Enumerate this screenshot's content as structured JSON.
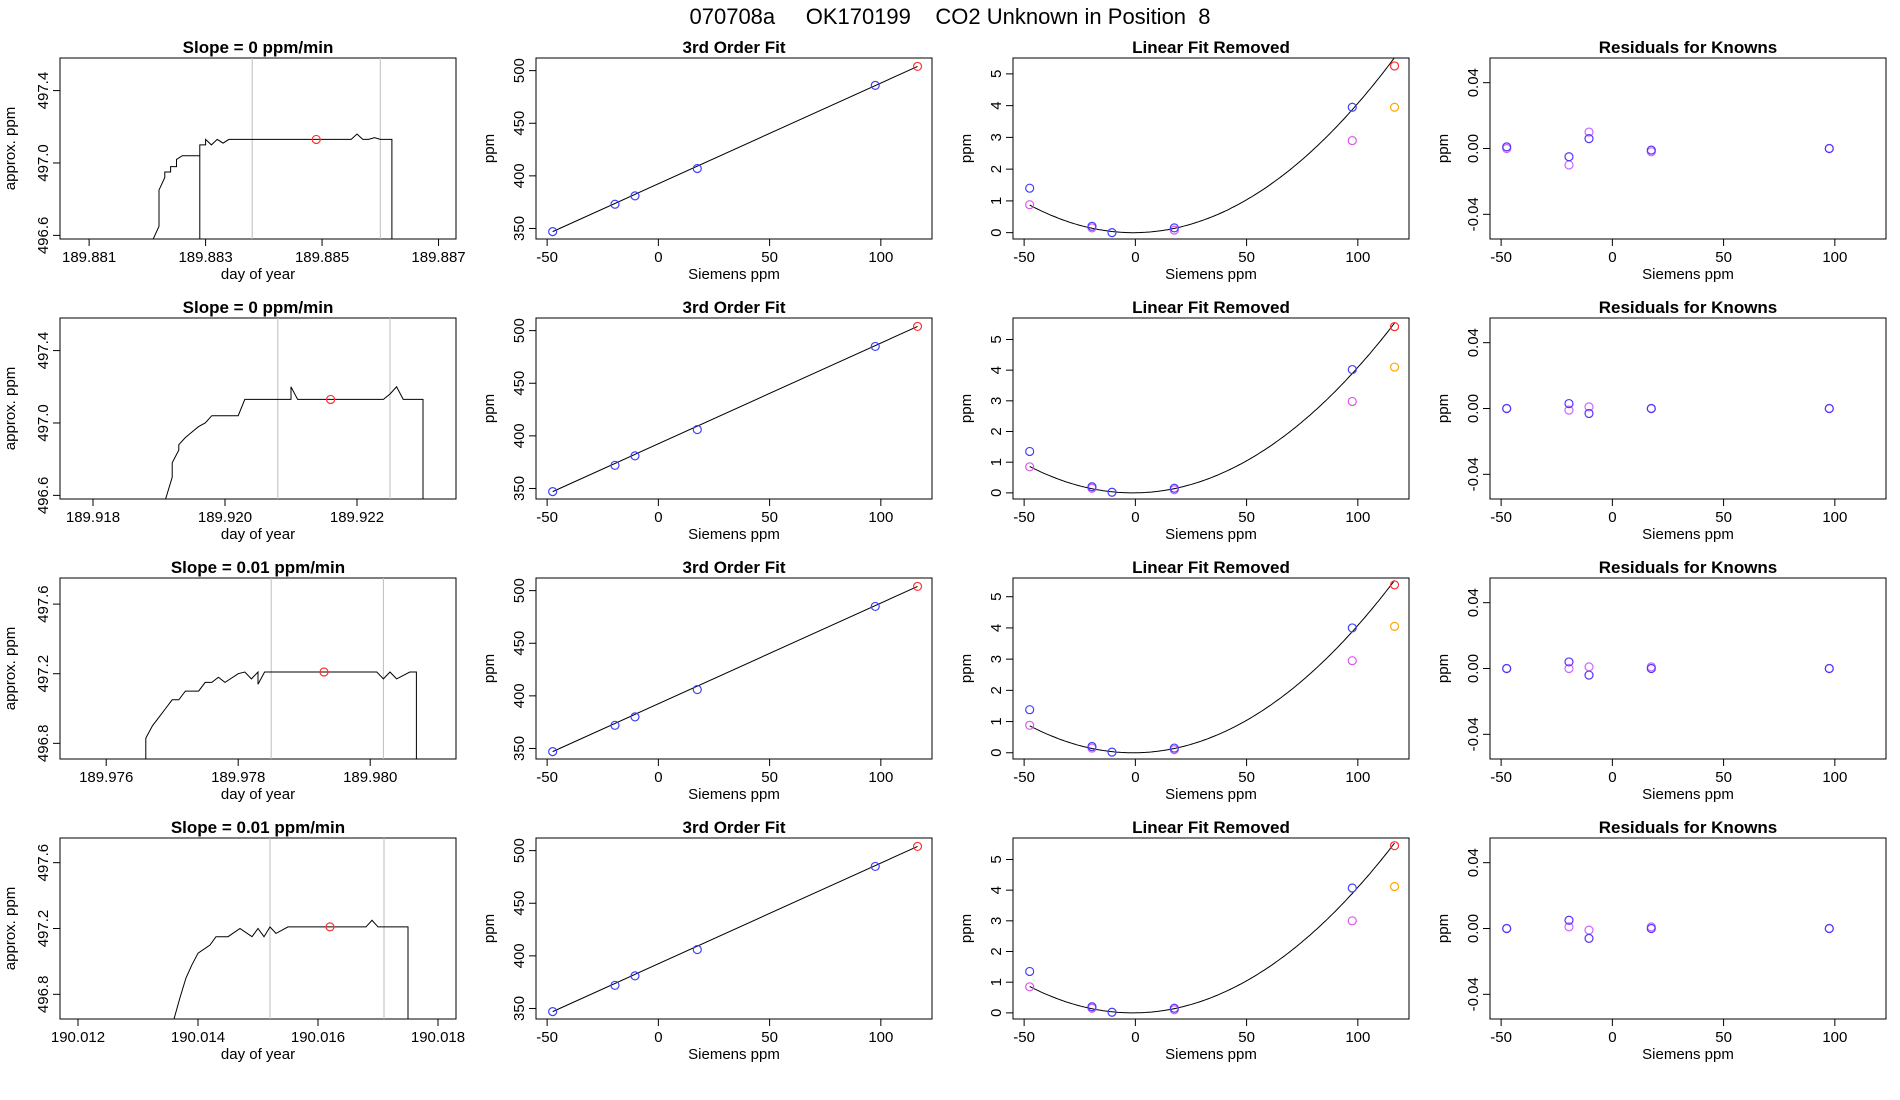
{
  "page": {
    "title": "070708a     OK170199    CO2 Unknown in Position  8"
  },
  "style": {
    "line_color": "#000000",
    "vline_color": "#bebebe",
    "known_color": "#4040ff",
    "unknown_color": "#ff3030",
    "linear_color": "#dd55ee",
    "linear_unknown_color": "#ffa500",
    "residual_a_color": "#cc66ff",
    "residual_b_color": "#5533ff"
  },
  "chart_data": [
    {
      "type": "line",
      "panel": "time-series",
      "row": 0,
      "title": "Slope =  0  ppm/min",
      "xlabel": "day of year",
      "ylabel": "approx. ppm",
      "xlim": [
        189.8805,
        189.8873
      ],
      "ylim": [
        496.58,
        497.58
      ],
      "xticks": [
        189.881,
        189.883,
        189.885,
        189.887
      ],
      "xtick_labels": [
        "189.881",
        "189.883",
        "189.885",
        "189.887"
      ],
      "yticks": [
        496.6,
        497.0,
        497.4
      ],
      "ytick_labels": [
        "496.6",
        "497.0",
        "497.4"
      ],
      "vlines": [
        189.8838,
        189.886
      ],
      "x": [
        189.8821,
        189.8822,
        189.8822,
        189.8822,
        189.8823,
        189.8823,
        189.8824,
        189.8824,
        189.8825,
        189.8825,
        189.8826,
        189.8827,
        189.8827,
        189.8828,
        189.8829,
        189.8829,
        189.8829,
        189.8829,
        189.8829,
        189.883,
        189.883,
        189.8831,
        189.8832,
        189.8833,
        189.8834,
        189.8835,
        189.8845,
        189.8855,
        189.8856,
        189.8857,
        189.8858,
        189.8859,
        189.886,
        189.8862,
        189.8862,
        189.8863
      ],
      "values": [
        496.58,
        496.65,
        496.75,
        496.85,
        496.92,
        496.95,
        496.95,
        496.98,
        496.98,
        497.02,
        497.04,
        497.04,
        497.04,
        497.04,
        497.04,
        497.04,
        496.58,
        496.58,
        497.1,
        497.1,
        497.13,
        497.1,
        497.13,
        497.11,
        497.13,
        497.13,
        497.13,
        497.13,
        497.16,
        497.13,
        497.13,
        497.14,
        497.13,
        497.13,
        496.58,
        496.58
      ],
      "marker": {
        "x": 189.8849,
        "y": 497.13
      }
    },
    {
      "type": "line",
      "panel": "time-series",
      "row": 1,
      "title": "Slope =  0  ppm/min",
      "xlabel": "day of year",
      "ylabel": "approx. ppm",
      "xlim": [
        189.9175,
        189.9235
      ],
      "ylim": [
        496.58,
        497.58
      ],
      "xticks": [
        189.918,
        189.92,
        189.922
      ],
      "xtick_labels": [
        "189.918",
        "189.920",
        "189.922"
      ],
      "yticks": [
        496.6,
        497.0,
        497.4
      ],
      "ytick_labels": [
        "496.6",
        "497.0",
        "497.4"
      ],
      "vlines": [
        189.9208,
        189.9225
      ],
      "x": [
        189.9191,
        189.9192,
        189.9192,
        189.9193,
        189.9193,
        189.9194,
        189.9195,
        189.9196,
        189.9197,
        189.9198,
        189.9199,
        189.9201,
        189.9202,
        189.9203,
        189.9208,
        189.921,
        189.921,
        189.9211,
        189.9212,
        189.9224,
        189.9225,
        189.9226,
        189.9227,
        189.9228,
        189.923,
        189.923,
        189.9231
      ],
      "values": [
        496.58,
        496.7,
        496.78,
        496.85,
        496.88,
        496.92,
        496.95,
        496.98,
        497.0,
        497.04,
        497.04,
        497.04,
        497.04,
        497.13,
        497.13,
        497.13,
        497.2,
        497.13,
        497.13,
        497.13,
        497.16,
        497.2,
        497.13,
        497.13,
        497.13,
        496.58,
        496.58
      ],
      "marker": {
        "x": 189.9216,
        "y": 497.13
      }
    },
    {
      "type": "line",
      "panel": "time-series",
      "row": 2,
      "title": "Slope =  0.01  ppm/min",
      "xlabel": "day of year",
      "ylabel": "approx. ppm",
      "xlim": [
        189.9753,
        189.9813
      ],
      "ylim": [
        496.71,
        497.75
      ],
      "xticks": [
        189.976,
        189.978,
        189.98
      ],
      "xtick_labels": [
        "189.976",
        "189.978",
        "189.980"
      ],
      "yticks": [
        496.8,
        497.2,
        497.6
      ],
      "ytick_labels": [
        "496.8",
        "497.2",
        "497.6"
      ],
      "vlines": [
        189.9785,
        189.9802
      ],
      "x": [
        189.9766,
        189.9766,
        189.9767,
        189.9768,
        189.9769,
        189.977,
        189.9771,
        189.9772,
        189.9774,
        189.9775,
        189.9776,
        189.9777,
        189.9778,
        189.978,
        189.9781,
        189.9782,
        189.9783,
        189.9783,
        189.9784,
        189.9785,
        189.9786,
        189.9787,
        189.9801,
        189.9802,
        189.9803,
        189.9804,
        189.9806,
        189.9807,
        189.9807,
        189.9807
      ],
      "values": [
        496.71,
        496.83,
        496.9,
        496.95,
        497.0,
        497.05,
        497.05,
        497.1,
        497.1,
        497.15,
        497.15,
        497.18,
        497.15,
        497.2,
        497.21,
        497.17,
        497.21,
        497.14,
        497.21,
        497.21,
        497.21,
        497.21,
        497.21,
        497.17,
        497.21,
        497.17,
        497.21,
        497.21,
        496.71,
        496.71
      ],
      "marker": {
        "x": 189.9793,
        "y": 497.21
      }
    },
    {
      "type": "line",
      "panel": "time-series",
      "row": 3,
      "title": "Slope =  0.01  ppm/min",
      "xlabel": "day of year",
      "ylabel": "approx. ppm",
      "xlim": [
        190.0117,
        190.0183
      ],
      "ylim": [
        496.65,
        497.75
      ],
      "xticks": [
        190.012,
        190.014,
        190.016,
        190.018
      ],
      "xtick_labels": [
        "190.012",
        "190.014",
        "190.016",
        "190.018"
      ],
      "yticks": [
        496.8,
        497.2,
        497.6
      ],
      "ytick_labels": [
        "496.8",
        "497.2",
        "497.6"
      ],
      "vlines": [
        190.0152,
        190.0171
      ],
      "x": [
        190.0136,
        190.0137,
        190.0138,
        190.0139,
        190.014,
        190.0142,
        190.0143,
        190.0144,
        190.0145,
        190.0147,
        190.0149,
        190.015,
        190.0151,
        190.0152,
        190.0153,
        190.0155,
        190.0168,
        190.0169,
        190.017,
        190.0175,
        190.0175,
        190.0176
      ],
      "values": [
        496.65,
        496.78,
        496.9,
        496.98,
        497.05,
        497.1,
        497.15,
        497.15,
        497.15,
        497.2,
        497.15,
        497.2,
        497.15,
        497.21,
        497.17,
        497.21,
        497.21,
        497.25,
        497.21,
        497.21,
        496.65,
        496.65
      ],
      "marker": {
        "x": 190.0162,
        "y": 497.21
      }
    },
    {
      "type": "scatter",
      "panel": "fit",
      "row": 0,
      "title": "3rd Order Fit",
      "xlabel": "Siemens ppm",
      "ylabel": "ppm",
      "xlim": [
        -55,
        123
      ],
      "ylim": [
        340,
        512
      ],
      "xticks": [
        -50,
        0,
        50,
        100
      ],
      "yticks": [
        350,
        400,
        450,
        500
      ],
      "knowns": {
        "x": [
          -47.5,
          -19.5,
          -10.5,
          17.5,
          97.5
        ],
        "y": [
          347,
          373,
          381,
          407,
          486
        ]
      },
      "unknown": {
        "x": 116.5,
        "y": 504
      },
      "curve": {
        "x": [
          -47.5,
          116.5
        ],
        "y": [
          347,
          504
        ]
      }
    },
    {
      "type": "line",
      "panel": "linear-fit-removed",
      "row": 0,
      "title": "Linear Fit Removed",
      "xlabel": "Siemens ppm",
      "ylabel": "ppm",
      "xlim": [
        -55,
        123
      ],
      "ylim": [
        -0.2,
        5.5
      ],
      "xticks": [
        -50,
        0,
        50,
        100
      ],
      "yticks": [
        0,
        1,
        2,
        3,
        4,
        5
      ],
      "curve": {
        "quadratic": [
          0.0,
          0.0007,
          0.0004
        ]
      },
      "knowns": {
        "x": [
          -47.5,
          -19.5,
          -10.5,
          17.5,
          97.5
        ],
        "y": [
          1.4,
          0.2,
          0.0,
          0.15,
          3.95
        ]
      },
      "unknown": {
        "x": 116.5,
        "y": 5.25
      },
      "linear": {
        "x": [
          -47.5,
          -19.5,
          17.5,
          97.5
        ],
        "y": [
          0.88,
          0.15,
          0.08,
          2.9
        ]
      },
      "linear_unknown": {
        "x": 116.5,
        "y": 3.95
      }
    },
    {
      "type": "scatter",
      "panel": "residuals",
      "row": 0,
      "title": "Residuals for Knowns",
      "xlabel": "Siemens ppm",
      "ylabel": "ppm",
      "xlim": [
        -55,
        123
      ],
      "ylim": [
        -0.055,
        0.055
      ],
      "xticks": [
        -50,
        0,
        50,
        100
      ],
      "yticks": [
        -0.04,
        0.0,
        0.04
      ],
      "ytick_labels": [
        "-0.04",
        "0.00",
        "0.04"
      ],
      "series_a": {
        "x": [
          -47.5,
          -19.5,
          -10.5,
          17.5,
          97.5
        ],
        "y": [
          0.0,
          -0.01,
          0.01,
          -0.002,
          0.0
        ]
      },
      "series_b": {
        "x": [
          -47.5,
          -19.5,
          -10.5,
          17.5,
          97.5
        ],
        "y": [
          0.001,
          -0.005,
          0.006,
          -0.001,
          0.0
        ]
      }
    },
    {
      "type": "scatter",
      "panel": "fit",
      "row": 1,
      "title": "3rd Order Fit",
      "xlabel": "Siemens ppm",
      "ylabel": "ppm",
      "xlim": [
        -55,
        123
      ],
      "ylim": [
        340,
        512
      ],
      "xticks": [
        -50,
        0,
        50,
        100
      ],
      "yticks": [
        350,
        400,
        450,
        500
      ],
      "knowns": {
        "x": [
          -47.5,
          -19.5,
          -10.5,
          17.5,
          97.5
        ],
        "y": [
          347,
          372,
          381,
          406,
          485
        ]
      },
      "unknown": {
        "x": 116.5,
        "y": 504
      },
      "curve": {
        "x": [
          -47.5,
          116.5
        ],
        "y": [
          347,
          504
        ]
      }
    },
    {
      "type": "line",
      "panel": "linear-fit-removed",
      "row": 1,
      "title": "Linear Fit Removed",
      "xlabel": "Siemens ppm",
      "ylabel": "ppm",
      "xlim": [
        -55,
        123
      ],
      "ylim": [
        -0.2,
        5.7
      ],
      "xticks": [
        -50,
        0,
        50,
        100
      ],
      "yticks": [
        0,
        1,
        2,
        3,
        4,
        5
      ],
      "curve": {
        "quadratic": [
          0.0,
          0.0009,
          0.0004
        ]
      },
      "knowns": {
        "x": [
          -47.5,
          -19.5,
          -10.5,
          17.5,
          97.5
        ],
        "y": [
          1.35,
          0.2,
          0.02,
          0.15,
          4.02
        ]
      },
      "unknown": {
        "x": 116.5,
        "y": 5.42
      },
      "linear": {
        "x": [
          -47.5,
          -19.5,
          17.5,
          97.5
        ],
        "y": [
          0.85,
          0.15,
          0.1,
          2.98
        ]
      },
      "linear_unknown": {
        "x": 116.5,
        "y": 4.1
      }
    },
    {
      "type": "scatter",
      "panel": "residuals",
      "row": 1,
      "title": "Residuals for Knowns",
      "xlabel": "Siemens ppm",
      "ylabel": "ppm",
      "xlim": [
        -55,
        123
      ],
      "ylim": [
        -0.055,
        0.055
      ],
      "xticks": [
        -50,
        0,
        50,
        100
      ],
      "yticks": [
        -0.04,
        0.0,
        0.04
      ],
      "ytick_labels": [
        "-0.04",
        "0.00",
        "0.04"
      ],
      "series_a": {
        "x": [
          -47.5,
          -19.5,
          -10.5,
          17.5,
          97.5
        ],
        "y": [
          0.0,
          -0.001,
          0.001,
          0.0,
          0.0
        ]
      },
      "series_b": {
        "x": [
          -47.5,
          -19.5,
          -10.5,
          17.5,
          97.5
        ],
        "y": [
          0.0,
          0.003,
          -0.003,
          0.0,
          0.0
        ]
      }
    },
    {
      "type": "scatter",
      "panel": "fit",
      "row": 2,
      "title": "3rd Order Fit",
      "xlabel": "Siemens ppm",
      "ylabel": "ppm",
      "xlim": [
        -55,
        123
      ],
      "ylim": [
        340,
        512
      ],
      "xticks": [
        -50,
        0,
        50,
        100
      ],
      "yticks": [
        350,
        400,
        450,
        500
      ],
      "knowns": {
        "x": [
          -47.5,
          -19.5,
          -10.5,
          17.5,
          97.5
        ],
        "y": [
          347,
          372,
          380,
          406,
          485
        ]
      },
      "unknown": {
        "x": 116.5,
        "y": 504
      },
      "curve": {
        "x": [
          -47.5,
          116.5
        ],
        "y": [
          347,
          504
        ]
      }
    },
    {
      "type": "line",
      "panel": "linear-fit-removed",
      "row": 2,
      "title": "Linear Fit Removed",
      "xlabel": "Siemens ppm",
      "ylabel": "ppm",
      "xlim": [
        -55,
        123
      ],
      "ylim": [
        -0.2,
        5.6
      ],
      "xticks": [
        -50,
        0,
        50,
        100
      ],
      "yticks": [
        0,
        1,
        2,
        3,
        4,
        5
      ],
      "curve": {
        "quadratic": [
          0.0,
          0.0008,
          0.0004
        ]
      },
      "knowns": {
        "x": [
          -47.5,
          -19.5,
          -10.5,
          17.5,
          97.5
        ],
        "y": [
          1.38,
          0.2,
          0.02,
          0.15,
          4.0
        ]
      },
      "unknown": {
        "x": 116.5,
        "y": 5.38
      },
      "linear": {
        "x": [
          -47.5,
          -19.5,
          17.5,
          97.5
        ],
        "y": [
          0.88,
          0.15,
          0.1,
          2.95
        ]
      },
      "linear_unknown": {
        "x": 116.5,
        "y": 4.05
      }
    },
    {
      "type": "scatter",
      "panel": "residuals",
      "row": 2,
      "title": "Residuals for Knowns",
      "xlabel": "Siemens ppm",
      "ylabel": "ppm",
      "xlim": [
        -55,
        123
      ],
      "ylim": [
        -0.055,
        0.055
      ],
      "xticks": [
        -50,
        0,
        50,
        100
      ],
      "yticks": [
        -0.04,
        0.0,
        0.04
      ],
      "ytick_labels": [
        "-0.04",
        "0.00",
        "0.04"
      ],
      "series_a": {
        "x": [
          -47.5,
          -19.5,
          -10.5,
          17.5,
          97.5
        ],
        "y": [
          0.0,
          0.0,
          0.001,
          0.001,
          0.0
        ]
      },
      "series_b": {
        "x": [
          -47.5,
          -19.5,
          -10.5,
          17.5,
          97.5
        ],
        "y": [
          0.0,
          0.004,
          -0.004,
          0.0,
          0.0
        ]
      }
    },
    {
      "type": "scatter",
      "panel": "fit",
      "row": 3,
      "title": "3rd Order Fit",
      "xlabel": "Siemens ppm",
      "ylabel": "ppm",
      "xlim": [
        -55,
        123
      ],
      "ylim": [
        340,
        512
      ],
      "xticks": [
        -50,
        0,
        50,
        100
      ],
      "yticks": [
        350,
        400,
        450,
        500
      ],
      "knowns": {
        "x": [
          -47.5,
          -19.5,
          -10.5,
          17.5,
          97.5
        ],
        "y": [
          347,
          372,
          381,
          406,
          485
        ]
      },
      "unknown": {
        "x": 116.5,
        "y": 504
      },
      "curve": {
        "x": [
          -47.5,
          116.5
        ],
        "y": [
          347,
          504
        ]
      }
    },
    {
      "type": "line",
      "panel": "linear-fit-removed",
      "row": 3,
      "title": "Linear Fit Removed",
      "xlabel": "Siemens ppm",
      "ylabel": "ppm",
      "xlim": [
        -55,
        123
      ],
      "ylim": [
        -0.2,
        5.7
      ],
      "xticks": [
        -50,
        0,
        50,
        100
      ],
      "yticks": [
        0,
        1,
        2,
        3,
        4,
        5
      ],
      "curve": {
        "quadratic": [
          0.0,
          0.0009,
          0.0004
        ]
      },
      "knowns": {
        "x": [
          -47.5,
          -19.5,
          -10.5,
          17.5,
          97.5
        ],
        "y": [
          1.35,
          0.2,
          0.02,
          0.15,
          4.07
        ]
      },
      "unknown": {
        "x": 116.5,
        "y": 5.45
      },
      "linear": {
        "x": [
          -47.5,
          -19.5,
          17.5,
          97.5
        ],
        "y": [
          0.85,
          0.15,
          0.1,
          3.0
        ]
      },
      "linear_unknown": {
        "x": 116.5,
        "y": 4.12
      }
    },
    {
      "type": "scatter",
      "panel": "residuals",
      "row": 3,
      "title": "Residuals for Knowns",
      "xlabel": "Siemens ppm",
      "ylabel": "ppm",
      "xlim": [
        -55,
        123
      ],
      "ylim": [
        -0.055,
        0.055
      ],
      "xticks": [
        -50,
        0,
        50,
        100
      ],
      "yticks": [
        -0.04,
        0.0,
        0.04
      ],
      "ytick_labels": [
        "-0.04",
        "0.00",
        "0.04"
      ],
      "series_a": {
        "x": [
          -47.5,
          -19.5,
          -10.5,
          17.5,
          97.5
        ],
        "y": [
          0.0,
          0.001,
          -0.001,
          0.001,
          0.0
        ]
      },
      "series_b": {
        "x": [
          -47.5,
          -19.5,
          -10.5,
          17.5,
          97.5
        ],
        "y": [
          0.0,
          0.005,
          -0.006,
          0.0,
          0.0
        ]
      }
    }
  ]
}
